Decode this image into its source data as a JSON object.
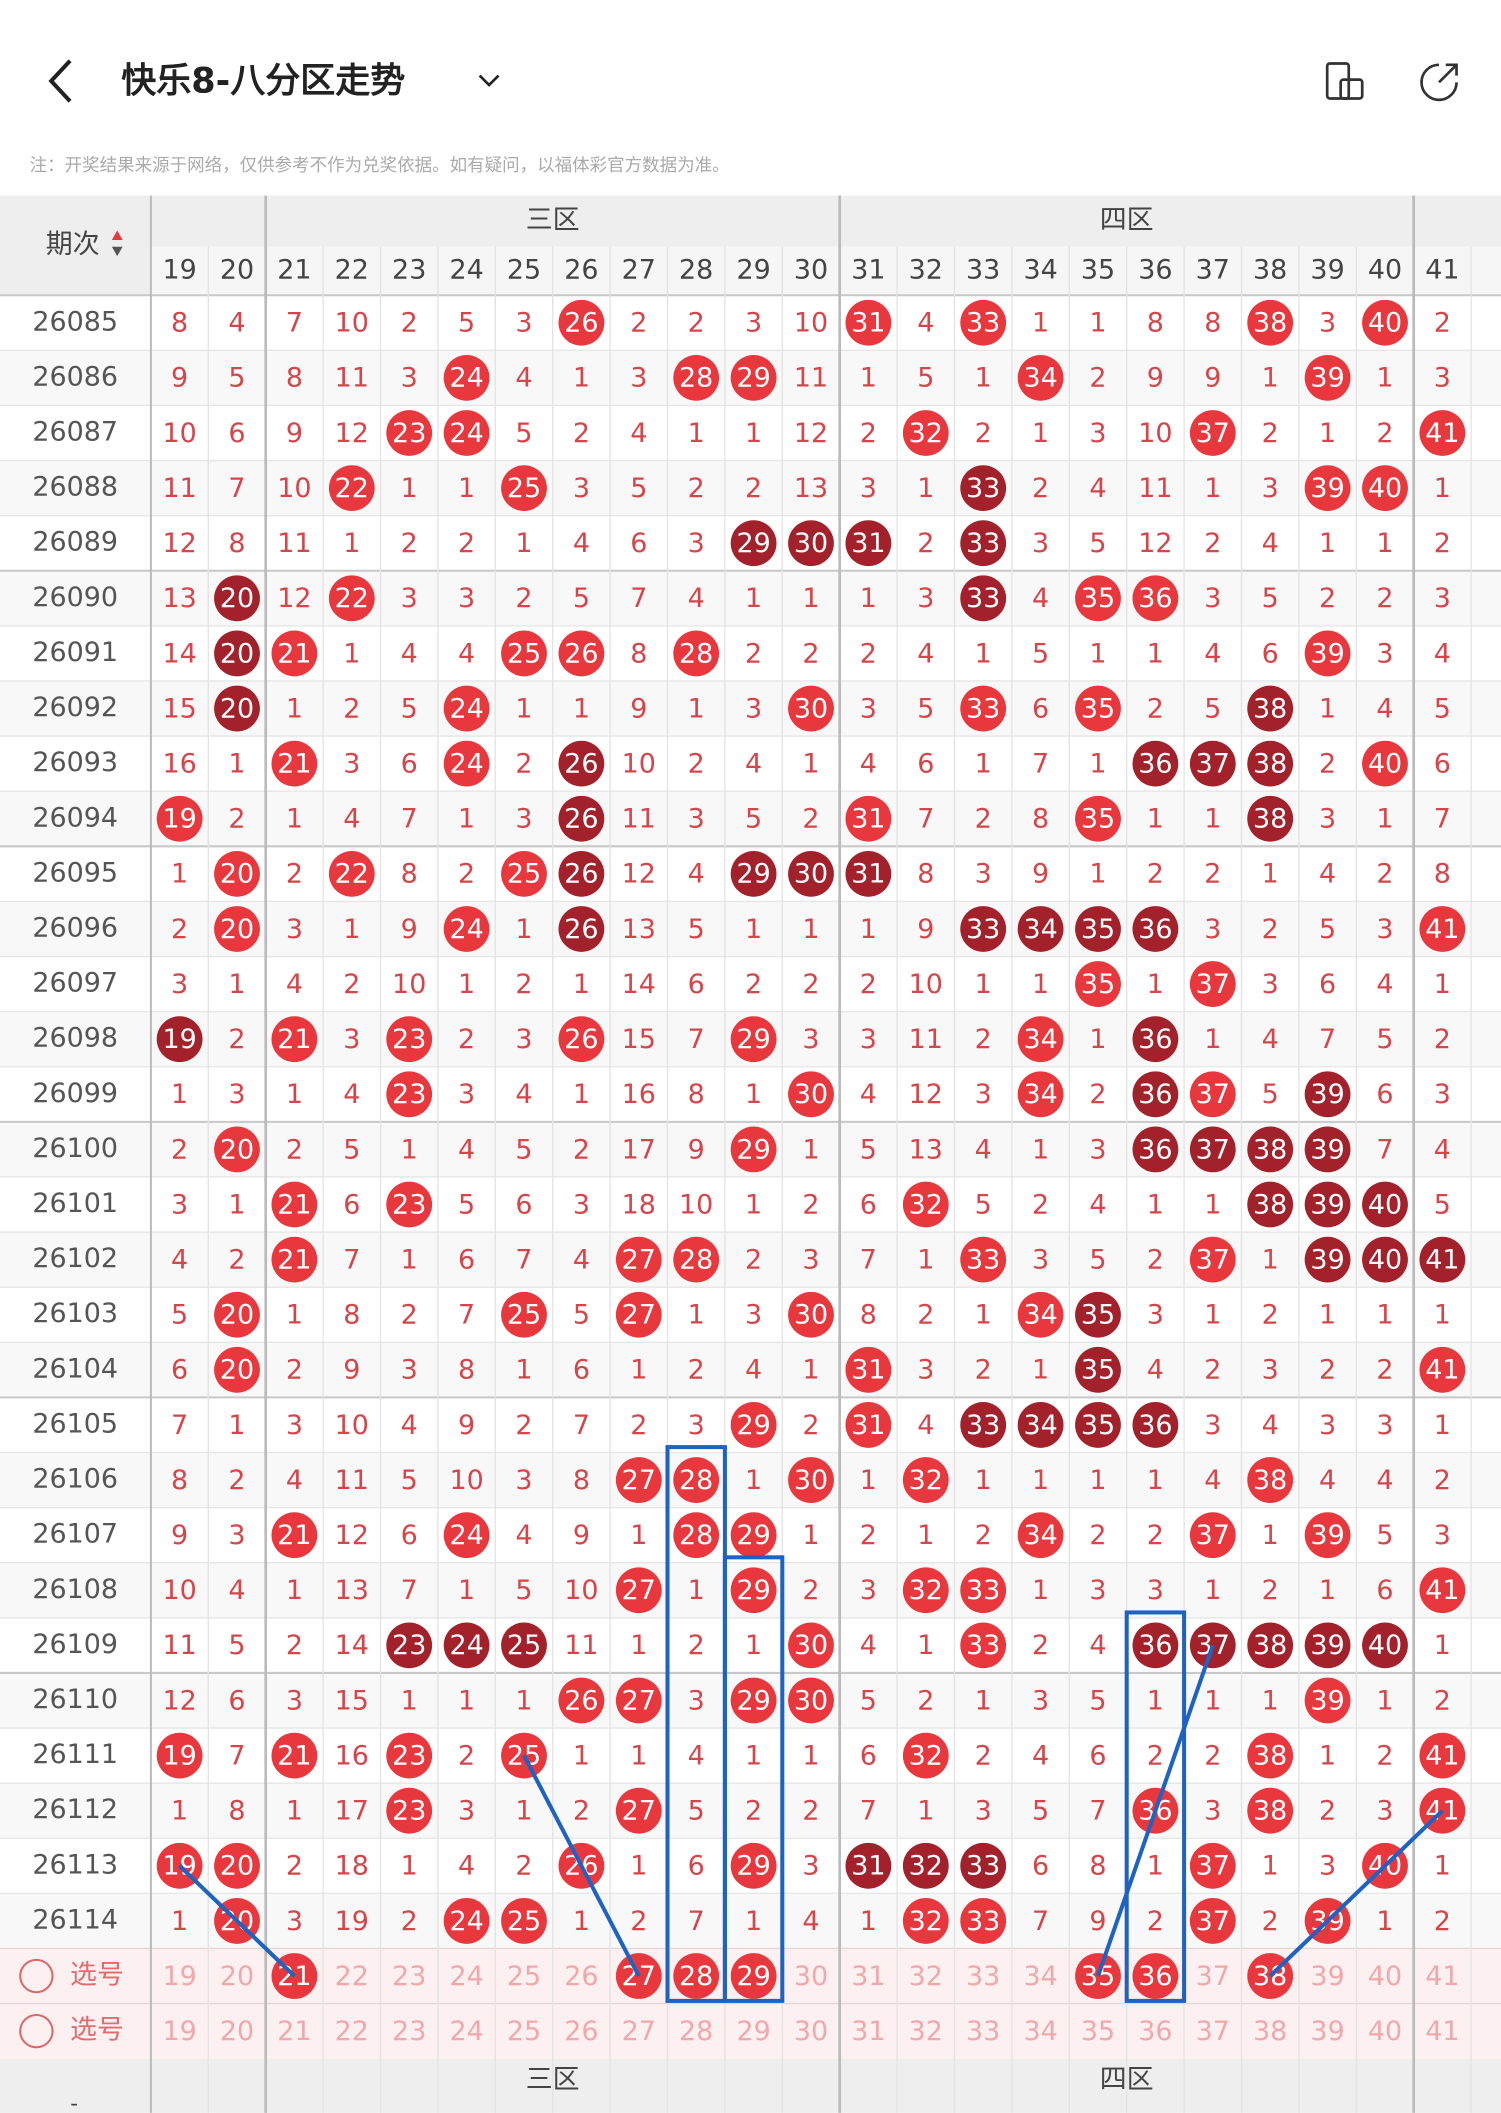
{
  "header": {
    "title": "快乐8-八分区走势"
  },
  "note": "注：开奖结果来源于网络，仅供参考不作为兑奖依据。如有疑问，以福体彩官方数据为准。",
  "table": {
    "period_header": "期次",
    "zones": [
      "三区",
      "四区"
    ],
    "select_label": "选号",
    "columns": [
      19,
      20,
      21,
      22,
      23,
      24,
      25,
      26,
      27,
      28,
      29,
      30,
      31,
      32,
      33,
      34,
      35,
      36,
      37,
      38,
      39,
      40,
      41
    ],
    "selected": [
      21,
      27,
      28,
      29,
      35,
      36,
      38
    ],
    "rows": [
      {
        "period": "26085",
        "cells": [
          8,
          4,
          7,
          10,
          2,
          5,
          3,
          26,
          2,
          2,
          3,
          10,
          31,
          4,
          33,
          1,
          1,
          8,
          8,
          38,
          3,
          40,
          2
        ],
        "dark": []
      },
      {
        "period": "26086",
        "cells": [
          9,
          5,
          8,
          11,
          3,
          24,
          4,
          1,
          3,
          28,
          29,
          11,
          1,
          5,
          1,
          34,
          2,
          9,
          9,
          1,
          39,
          1,
          3
        ],
        "dark": []
      },
      {
        "period": "26087",
        "cells": [
          10,
          6,
          9,
          12,
          23,
          24,
          5,
          2,
          4,
          1,
          1,
          12,
          2,
          32,
          2,
          1,
          3,
          10,
          37,
          2,
          1,
          2,
          41
        ],
        "dark": []
      },
      {
        "period": "26088",
        "cells": [
          11,
          7,
          10,
          22,
          1,
          1,
          25,
          3,
          5,
          2,
          2,
          13,
          3,
          1,
          33,
          2,
          4,
          11,
          1,
          3,
          39,
          40,
          1
        ],
        "dark": [
          33
        ]
      },
      {
        "period": "26089",
        "cells": [
          12,
          8,
          11,
          1,
          2,
          2,
          1,
          4,
          6,
          3,
          29,
          30,
          31,
          2,
          33,
          3,
          5,
          12,
          2,
          4,
          1,
          1,
          2
        ],
        "dark": [
          29,
          30,
          31,
          33
        ]
      },
      {
        "period": "26090",
        "cells": [
          13,
          20,
          12,
          22,
          3,
          3,
          2,
          5,
          7,
          4,
          1,
          1,
          1,
          3,
          33,
          4,
          35,
          36,
          3,
          5,
          2,
          2,
          3
        ],
        "dark": [
          20,
          33
        ]
      },
      {
        "period": "26091",
        "cells": [
          14,
          20,
          21,
          1,
          4,
          4,
          25,
          26,
          8,
          28,
          2,
          2,
          2,
          4,
          1,
          5,
          1,
          1,
          4,
          6,
          39,
          3,
          4
        ],
        "dark": [
          20
        ]
      },
      {
        "period": "26092",
        "cells": [
          15,
          20,
          1,
          2,
          5,
          24,
          1,
          1,
          9,
          1,
          3,
          30,
          3,
          5,
          33,
          6,
          35,
          2,
          5,
          38,
          1,
          4,
          5
        ],
        "dark": [
          20,
          38
        ]
      },
      {
        "period": "26093",
        "cells": [
          16,
          1,
          21,
          3,
          6,
          24,
          2,
          26,
          10,
          2,
          4,
          1,
          4,
          6,
          1,
          7,
          1,
          36,
          37,
          38,
          2,
          40,
          6
        ],
        "dark": [
          26,
          36,
          37,
          38
        ]
      },
      {
        "period": "26094",
        "cells": [
          19,
          2,
          1,
          4,
          7,
          1,
          3,
          26,
          11,
          3,
          5,
          2,
          31,
          7,
          2,
          8,
          35,
          1,
          1,
          38,
          3,
          1,
          7
        ],
        "dark": [
          26,
          38
        ]
      },
      {
        "period": "26095",
        "cells": [
          1,
          20,
          2,
          22,
          8,
          2,
          25,
          26,
          12,
          4,
          29,
          30,
          31,
          8,
          3,
          9,
          1,
          2,
          2,
          1,
          4,
          2,
          8
        ],
        "dark": [
          26,
          29,
          30,
          31
        ]
      },
      {
        "period": "26096",
        "cells": [
          2,
          20,
          3,
          1,
          9,
          24,
          1,
          26,
          13,
          5,
          1,
          1,
          1,
          9,
          33,
          34,
          35,
          36,
          3,
          2,
          5,
          3,
          41
        ],
        "dark": [
          26,
          33,
          34,
          35,
          36
        ]
      },
      {
        "period": "26097",
        "cells": [
          3,
          1,
          4,
          2,
          10,
          1,
          2,
          1,
          14,
          6,
          2,
          2,
          2,
          10,
          1,
          1,
          35,
          1,
          37,
          3,
          6,
          4,
          1
        ],
        "dark": []
      },
      {
        "period": "26098",
        "cells": [
          19,
          2,
          21,
          3,
          23,
          2,
          3,
          26,
          15,
          7,
          29,
          3,
          3,
          11,
          2,
          34,
          1,
          36,
          1,
          4,
          7,
          5,
          2
        ],
        "dark": [
          19,
          36
        ]
      },
      {
        "period": "26099",
        "cells": [
          1,
          3,
          1,
          4,
          23,
          3,
          4,
          1,
          16,
          8,
          1,
          30,
          4,
          12,
          3,
          34,
          2,
          36,
          37,
          5,
          39,
          6,
          3
        ],
        "dark": [
          36,
          39
        ]
      },
      {
        "period": "26100",
        "cells": [
          2,
          20,
          2,
          5,
          1,
          4,
          5,
          2,
          17,
          9,
          29,
          1,
          5,
          13,
          4,
          1,
          3,
          36,
          37,
          38,
          39,
          7,
          4
        ],
        "dark": [
          36,
          37,
          38,
          39
        ]
      },
      {
        "period": "26101",
        "cells": [
          3,
          1,
          21,
          6,
          23,
          5,
          6,
          3,
          18,
          10,
          1,
          2,
          6,
          32,
          5,
          2,
          4,
          1,
          1,
          38,
          39,
          40,
          5
        ],
        "dark": [
          38,
          39,
          40
        ]
      },
      {
        "period": "26102",
        "cells": [
          4,
          2,
          21,
          7,
          1,
          6,
          7,
          4,
          27,
          28,
          2,
          3,
          7,
          1,
          33,
          3,
          5,
          2,
          37,
          1,
          39,
          40,
          41
        ],
        "dark": [
          39,
          40,
          41
        ]
      },
      {
        "period": "26103",
        "cells": [
          5,
          20,
          1,
          8,
          2,
          7,
          25,
          5,
          27,
          1,
          3,
          30,
          8,
          2,
          1,
          34,
          35,
          3,
          1,
          2,
          1,
          1,
          1
        ],
        "dark": [
          35
        ]
      },
      {
        "period": "26104",
        "cells": [
          6,
          20,
          2,
          9,
          3,
          8,
          1,
          6,
          1,
          2,
          4,
          1,
          31,
          3,
          2,
          1,
          35,
          4,
          2,
          3,
          2,
          2,
          41
        ],
        "dark": [
          35
        ]
      },
      {
        "period": "26105",
        "cells": [
          7,
          1,
          3,
          10,
          4,
          9,
          2,
          7,
          2,
          3,
          29,
          2,
          31,
          4,
          33,
          34,
          35,
          36,
          3,
          4,
          3,
          3,
          1
        ],
        "dark": [
          33,
          34,
          35,
          36
        ]
      },
      {
        "period": "26106",
        "cells": [
          8,
          2,
          4,
          11,
          5,
          10,
          3,
          8,
          27,
          28,
          1,
          30,
          1,
          32,
          1,
          1,
          1,
          1,
          4,
          38,
          4,
          4,
          2
        ],
        "dark": []
      },
      {
        "period": "26107",
        "cells": [
          9,
          3,
          21,
          12,
          6,
          24,
          4,
          9,
          1,
          28,
          29,
          1,
          2,
          1,
          2,
          34,
          2,
          2,
          37,
          1,
          39,
          5,
          3
        ],
        "dark": []
      },
      {
        "period": "26108",
        "cells": [
          10,
          4,
          1,
          13,
          7,
          1,
          5,
          10,
          27,
          1,
          29,
          2,
          3,
          32,
          33,
          1,
          3,
          3,
          1,
          2,
          1,
          6,
          41
        ],
        "dark": []
      },
      {
        "period": "26109",
        "cells": [
          11,
          5,
          2,
          14,
          23,
          24,
          25,
          11,
          1,
          2,
          1,
          30,
          4,
          1,
          33,
          2,
          4,
          36,
          37,
          38,
          39,
          40,
          1
        ],
        "dark": [
          23,
          24,
          25,
          36,
          37,
          38,
          39,
          40
        ]
      },
      {
        "period": "26110",
        "cells": [
          12,
          6,
          3,
          15,
          1,
          1,
          1,
          26,
          27,
          3,
          29,
          30,
          5,
          2,
          1,
          3,
          5,
          1,
          1,
          1,
          39,
          1,
          2
        ],
        "dark": []
      },
      {
        "period": "26111",
        "cells": [
          19,
          7,
          21,
          16,
          23,
          2,
          25,
          1,
          1,
          4,
          1,
          1,
          6,
          32,
          2,
          4,
          6,
          2,
          2,
          38,
          1,
          2,
          41
        ],
        "dark": []
      },
      {
        "period": "26112",
        "cells": [
          1,
          8,
          1,
          17,
          23,
          3,
          1,
          2,
          27,
          5,
          2,
          2,
          7,
          1,
          3,
          5,
          7,
          36,
          3,
          38,
          2,
          3,
          41
        ],
        "dark": []
      },
      {
        "period": "26113",
        "cells": [
          19,
          20,
          2,
          18,
          1,
          4,
          2,
          26,
          1,
          6,
          29,
          3,
          31,
          32,
          33,
          6,
          8,
          1,
          37,
          1,
          3,
          40,
          1
        ],
        "dark": [
          31,
          32,
          33
        ]
      },
      {
        "period": "26114",
        "cells": [
          1,
          20,
          3,
          19,
          2,
          24,
          25,
          1,
          2,
          7,
          1,
          4,
          1,
          32,
          33,
          7,
          9,
          2,
          37,
          2,
          39,
          1,
          2
        ],
        "dark": []
      }
    ]
  }
}
